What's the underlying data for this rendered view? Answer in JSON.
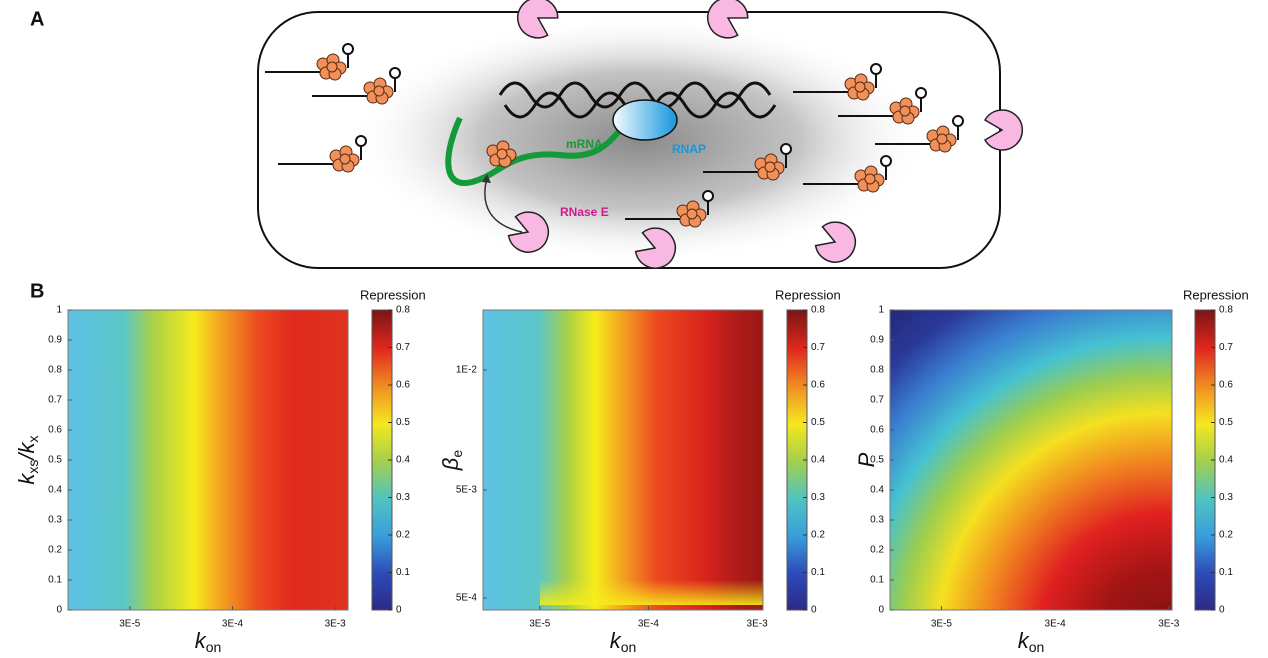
{
  "panel_a": {
    "label": "A",
    "labels": {
      "mrna": "mRNA",
      "rnap": "RNAP",
      "rnase": "RNase E"
    }
  },
  "panel_b": {
    "label": "B",
    "heatmaps": [
      {
        "type": "heatmap",
        "xlabel": [
          {
            "symbol": "k",
            "subscript": "on"
          }
        ],
        "ylabel": [
          {
            "symbol": "k",
            "subscript": "xs"
          },
          {
            "symbol": "/k",
            "subscript": "x"
          }
        ],
        "xscale": "log",
        "xlim": [
          7.5e-06,
          0.004
        ],
        "xticks": [
          {
            "value": 3e-05,
            "label": "3E-5"
          },
          {
            "value": 0.0003,
            "label": "3E-4"
          },
          {
            "value": 0.003,
            "label": "3E-3"
          }
        ],
        "ylim": [
          0,
          1
        ],
        "yticks": [
          0,
          0.1,
          0.2,
          0.3,
          0.4,
          0.5,
          0.6,
          0.7,
          0.8,
          0.9,
          1
        ],
        "colorbar": {
          "label": "Repression",
          "lim": [
            0,
            0.8
          ],
          "ticks": [
            0,
            0.1,
            0.2,
            0.3,
            0.4,
            0.5,
            0.6,
            0.7,
            0.8
          ]
        }
      },
      {
        "type": "heatmap",
        "xlabel": [
          {
            "symbol": "k",
            "subscript": "on"
          }
        ],
        "ylabel": [
          {
            "symbol": "β",
            "subscript": "e"
          }
        ],
        "xscale": "log",
        "xlim": [
          9e-06,
          0.0034
        ],
        "xticks": [
          {
            "value": 3e-05,
            "label": "3E-5"
          },
          {
            "value": 0.0003,
            "label": "3E-4"
          },
          {
            "value": 0.003,
            "label": "3E-3"
          }
        ],
        "ylim": [
          0,
          0.0125
        ],
        "yticks": [
          {
            "value": 0.0005,
            "label": "5E-4"
          },
          {
            "value": 0.005,
            "label": "5E-3"
          },
          {
            "value": 0.01,
            "label": "1E-2"
          }
        ],
        "colorbar": {
          "label": "Repression",
          "lim": [
            0,
            0.8
          ],
          "ticks": [
            0,
            0.1,
            0.2,
            0.3,
            0.4,
            0.5,
            0.6,
            0.7,
            0.8
          ]
        }
      },
      {
        "type": "heatmap",
        "xlabel": [
          {
            "symbol": "k",
            "subscript": "on"
          }
        ],
        "ylabel": [
          {
            "symbol": "P",
            "subscript": null
          }
        ],
        "xscale": "log",
        "xlim": [
          1.06e-05,
          0.0032
        ],
        "xticks": [
          {
            "value": 3e-05,
            "label": "3E-5"
          },
          {
            "value": 0.0003,
            "label": "3E-4"
          },
          {
            "value": 0.003,
            "label": "3E-3"
          }
        ],
        "ylim": [
          0,
          1
        ],
        "yticks": [
          0,
          0.1,
          0.2,
          0.3,
          0.4,
          0.5,
          0.6,
          0.7,
          0.8,
          0.9,
          1
        ],
        "colorbar": {
          "label": "Repression",
          "lim": [
            0,
            0.8
          ],
          "ticks": [
            0,
            0.1,
            0.2,
            0.3,
            0.4,
            0.5,
            0.6,
            0.7,
            0.8
          ]
        }
      }
    ]
  }
}
